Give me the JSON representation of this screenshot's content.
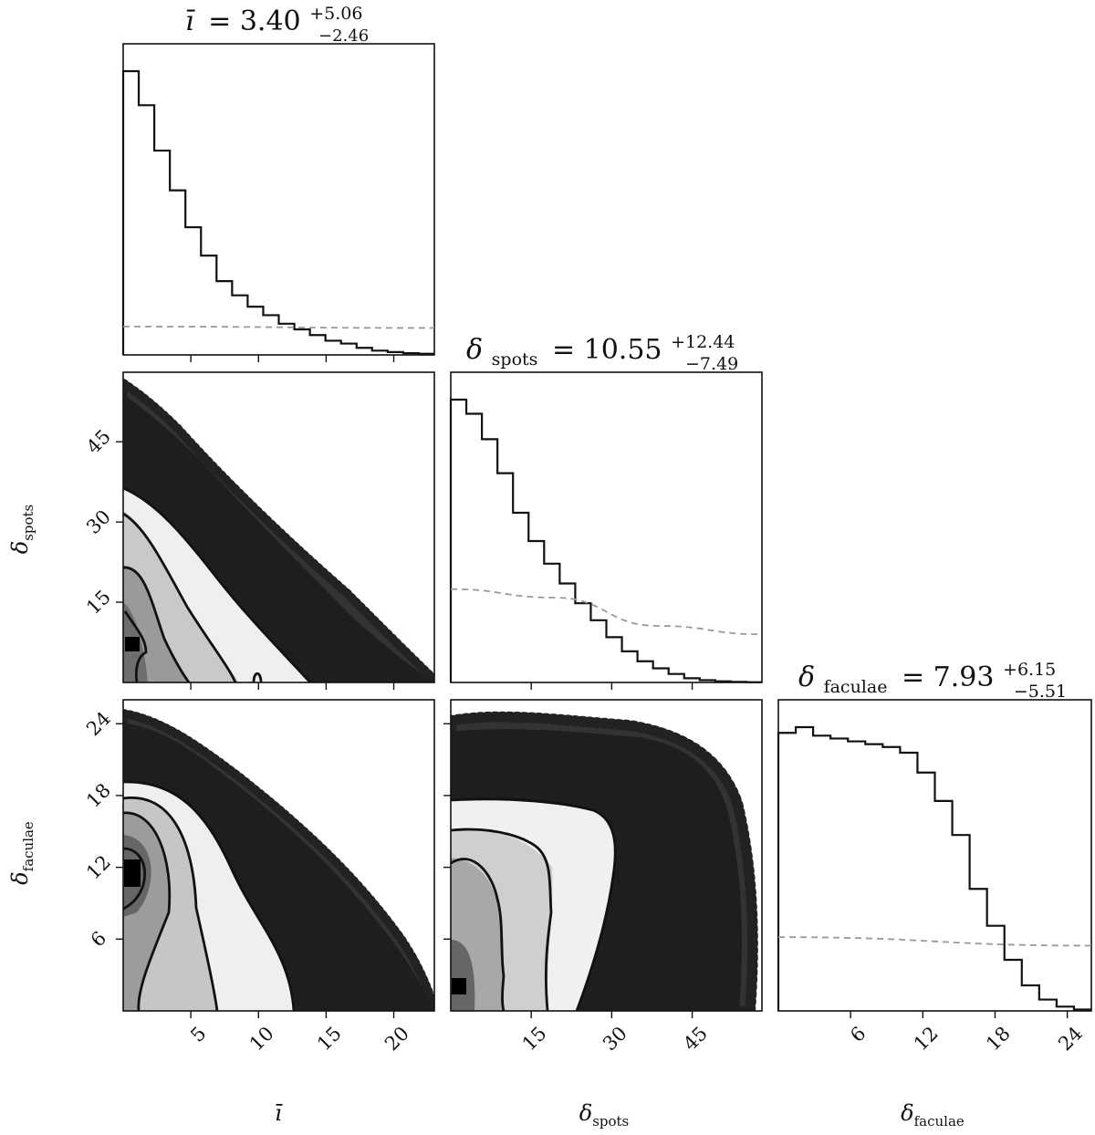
{
  "chart_data": {
    "type": "corner",
    "parameters": [
      {
        "symbol": "ī",
        "title_main": "= 3.40",
        "title_sup": "+5.06",
        "title_sub": "−2.46",
        "range": [
          0,
          23
        ],
        "ticks": [
          "5",
          "10",
          "15",
          "20"
        ],
        "tick_values": [
          5,
          10,
          15,
          20
        ]
      },
      {
        "symbol": "δ",
        "subscript": "spots",
        "title_main": "= 10.55",
        "title_sup": "+12.44",
        "title_sub": "−7.49",
        "range": [
          0,
          58
        ],
        "ticks": [
          "15",
          "30",
          "45"
        ],
        "tick_values": [
          15,
          30,
          45
        ]
      },
      {
        "symbol": "δ",
        "subscript": "faculae",
        "title_main": "= 7.93",
        "title_sup": "+6.15",
        "title_sub": "−5.51",
        "range": [
          0,
          26
        ],
        "ticks": [
          "6",
          "12",
          "18",
          "24"
        ],
        "tick_values": [
          6,
          12,
          18,
          24
        ]
      }
    ],
    "histograms": [
      {
        "parameter": "ī",
        "counts": [
          1.0,
          0.88,
          0.72,
          0.58,
          0.45,
          0.35,
          0.26,
          0.21,
          0.17,
          0.14,
          0.11,
          0.09,
          0.07,
          0.05,
          0.04,
          0.025,
          0.015,
          0.01,
          0.006,
          0.004
        ]
      },
      {
        "parameter": "δspots",
        "counts": [
          1.0,
          0.95,
          0.86,
          0.74,
          0.6,
          0.5,
          0.42,
          0.35,
          0.28,
          0.22,
          0.16,
          0.11,
          0.075,
          0.05,
          0.03,
          0.015,
          0.008,
          0.004,
          0.002,
          0.001
        ]
      },
      {
        "parameter": "δfaculae",
        "counts": [
          0.98,
          1.0,
          0.97,
          0.96,
          0.95,
          0.94,
          0.93,
          0.91,
          0.84,
          0.74,
          0.62,
          0.43,
          0.3,
          0.18,
          0.09,
          0.04,
          0.015,
          0.005
        ]
      }
    ],
    "priors": [
      {
        "parameter": "ī",
        "values": [
          0.1,
          0.095
        ]
      },
      {
        "parameter": "δspots",
        "values": [
          0.33,
          0.3,
          0.2,
          0.17
        ]
      },
      {
        "parameter": "δfaculae",
        "values": [
          0.26,
          0.23
        ]
      }
    ]
  }
}
